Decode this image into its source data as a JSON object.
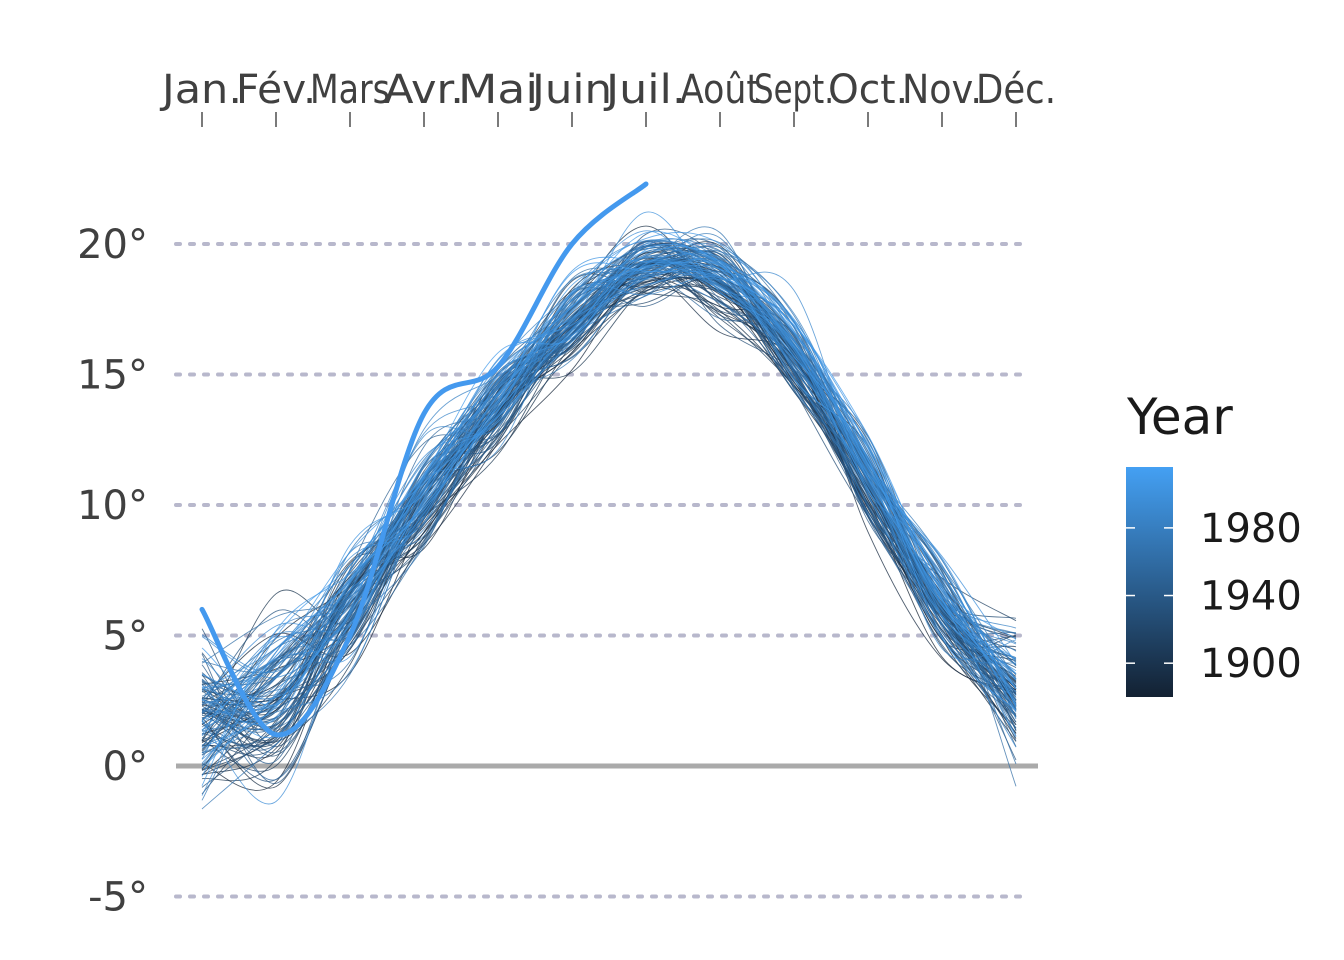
{
  "chart_data": {
    "type": "line",
    "xlabel": "",
    "ylabel": "",
    "title": "",
    "months": [
      "Jan.",
      "Fév.",
      "Mars",
      "Avr.",
      "Mai",
      "Juin",
      "Juil.",
      "Août",
      "Sept.",
      "Oct.",
      "Nov.",
      "Déc."
    ],
    "x_axis_position": "top",
    "y_ticks": [
      -5,
      0,
      5,
      10,
      15,
      20
    ],
    "y_tick_labels": [
      "-5°",
      "0°",
      "5°",
      "10°",
      "15°",
      "20°"
    ],
    "ylim": [
      -7.3,
      24.5
    ],
    "grid": "horizontal dotted",
    "zero_line": true,
    "background_series": {
      "description_in_image": "many thin lines, one per year, colored by year",
      "year_range": [
        1880,
        2010
      ],
      "typical_monthly_mean": [
        1.2,
        2.3,
        5.6,
        9.7,
        13.4,
        16.5,
        18.6,
        18.2,
        15.3,
        10.6,
        5.7,
        2.4
      ],
      "typical_monthly_spread": [
        2.4,
        2.5,
        1.7,
        1.4,
        1.3,
        1.2,
        1.2,
        1.1,
        1.1,
        1.2,
        1.3,
        2.0
      ]
    },
    "highlighted_series": {
      "months_covered": [
        "Jan.",
        "Fév.",
        "Mars",
        "Avr.",
        "Mai",
        "Juin",
        "Juil."
      ],
      "values": [
        6.0,
        1.2,
        5.0,
        13.5,
        15.3,
        20.0,
        22.3
      ],
      "color": "#4499ee"
    },
    "legend": {
      "title": "Year",
      "position": "right",
      "type": "colorbar",
      "labels": [
        "1900",
        "1940",
        "1980"
      ],
      "label_values": [
        1900,
        1940,
        1980
      ],
      "range": [
        1880,
        2016
      ],
      "color_low": "#132132",
      "color_high": "#44a0f3"
    },
    "colors": {
      "gridline": "#b8b8cc",
      "zero_line": "#aaaaaa",
      "text": "#404040"
    }
  }
}
